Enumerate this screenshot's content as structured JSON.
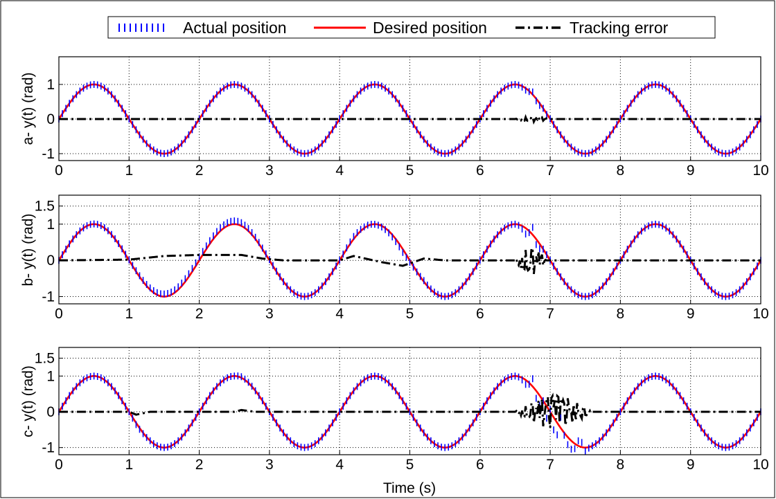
{
  "legend": {
    "placement": "top-center",
    "entries": [
      {
        "label": "Actual position",
        "color": "#0000ff",
        "style": "dotted-ticks"
      },
      {
        "label": "Desired position",
        "color": "#ff0000",
        "style": "solid"
      },
      {
        "label": "Tracking error",
        "color": "#000000",
        "style": "dash-dot"
      }
    ]
  },
  "shared_xlabel": "Time (s)",
  "chart_data": [
    {
      "type": "line",
      "ylabel": "a- y(t) (rad)",
      "xlim": [
        0,
        10
      ],
      "ylim": [
        -1.2,
        1.8
      ],
      "xticks": [
        0,
        1,
        2,
        3,
        4,
        5,
        6,
        7,
        8,
        9,
        10
      ],
      "yticks": [
        -1,
        0,
        1
      ],
      "grid": true,
      "desired": {
        "function": "sin(pi*t)",
        "amplitude": 1,
        "period_s": 2
      },
      "disturbances": [
        {
          "series": "actual",
          "t_start": 6.5,
          "t_end": 7.0,
          "extra_amplitude": 0.08
        },
        {
          "series": "error",
          "t_start": 6.5,
          "t_end": 7.0,
          "extra_amplitude": 0.08
        }
      ]
    },
    {
      "type": "line",
      "ylabel": "b- y(t) (rad)",
      "xlim": [
        0,
        10
      ],
      "ylim": [
        -1.2,
        1.8
      ],
      "xticks": [
        0,
        1,
        2,
        3,
        4,
        5,
        6,
        7,
        8,
        9,
        10
      ],
      "yticks": [
        -1,
        0,
        1,
        1.5
      ],
      "grid": true,
      "desired": {
        "function": "sin(pi*t)",
        "amplitude": 1,
        "period_s": 2
      },
      "error_offset_points": [
        [
          0,
          0
        ],
        [
          1,
          0.02
        ],
        [
          1.5,
          0.12
        ],
        [
          2.0,
          0.15
        ],
        [
          2.6,
          0.15
        ],
        [
          2.9,
          0.05
        ],
        [
          3.2,
          0
        ],
        [
          4.0,
          0.0
        ],
        [
          4.2,
          0.12
        ],
        [
          4.6,
          -0.05
        ],
        [
          4.9,
          -0.15
        ],
        [
          5.2,
          0.05
        ],
        [
          5.5,
          0.0
        ],
        [
          10,
          0
        ]
      ],
      "disturbances": [
        {
          "series": "actual",
          "t_start": 6.5,
          "t_end": 6.95,
          "extra_amplitude": 0.22
        },
        {
          "series": "error",
          "t_start": 6.5,
          "t_end": 6.95,
          "extra_amplitude": 0.4
        }
      ]
    },
    {
      "type": "line",
      "ylabel": "c- y(t) (rad)",
      "xlim": [
        0,
        10
      ],
      "ylim": [
        -1.2,
        1.8
      ],
      "xticks": [
        0,
        1,
        2,
        3,
        4,
        5,
        6,
        7,
        8,
        9,
        10
      ],
      "yticks": [
        -1,
        0,
        1,
        1.5
      ],
      "grid": true,
      "desired": {
        "function": "sin(pi*t)",
        "amplitude": 1,
        "period_s": 2
      },
      "error_offset_points": [
        [
          0,
          0
        ],
        [
          1.0,
          0.0
        ],
        [
          1.1,
          -0.08
        ],
        [
          1.3,
          0.0
        ],
        [
          2.5,
          0.0
        ],
        [
          2.6,
          0.05
        ],
        [
          2.8,
          0.0
        ],
        [
          10,
          0
        ]
      ],
      "disturbances": [
        {
          "series": "actual",
          "t_start": 6.5,
          "t_end": 7.6,
          "extra_amplitude": 0.35
        },
        {
          "series": "error",
          "t_start": 6.5,
          "t_end": 7.6,
          "extra_amplitude": 0.45
        }
      ]
    }
  ]
}
